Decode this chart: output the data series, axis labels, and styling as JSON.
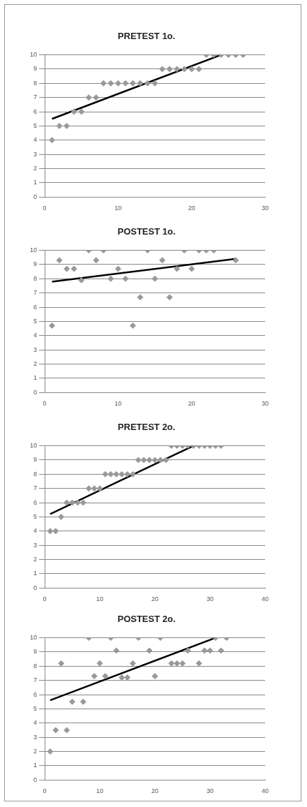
{
  "chart_data": [
    {
      "type": "scatter",
      "title": "PRETEST 1o.",
      "xlim": [
        0,
        30
      ],
      "xticks": [
        0,
        10,
        20,
        30
      ],
      "ylim": [
        0,
        10
      ],
      "yticks": [
        0,
        1,
        2,
        3,
        4,
        5,
        6,
        7,
        8,
        9,
        10
      ],
      "grid": "y",
      "legend": false,
      "marker": "diamond",
      "series": [
        {
          "color": "#999999",
          "x": [
            1,
            2,
            3,
            4,
            5,
            6,
            7,
            8,
            9,
            10,
            11,
            12,
            13,
            14,
            15,
            16,
            17,
            18,
            19,
            20,
            21,
            22,
            23,
            24,
            25,
            26,
            27
          ],
          "values": [
            4,
            5,
            5,
            6,
            6,
            7,
            7,
            8,
            8,
            8,
            8,
            8,
            8,
            8,
            8,
            9,
            9,
            9,
            9,
            9,
            9,
            10,
            10,
            10,
            10,
            10,
            10
          ]
        },
        {
          "type": "line",
          "marker": "none",
          "color": "#000000",
          "x": [
            1,
            24
          ],
          "values": [
            5.5,
            10
          ]
        }
      ]
    },
    {
      "type": "scatter",
      "title": "POSTEST 1o.",
      "xlim": [
        0,
        30
      ],
      "xticks": [
        0,
        10,
        20,
        30
      ],
      "ylim": [
        0,
        10
      ],
      "yticks": [
        0,
        1,
        2,
        3,
        4,
        5,
        6,
        7,
        8,
        9,
        10
      ],
      "grid": "y",
      "legend": false,
      "marker": "diamond",
      "series": [
        {
          "color": "#999999",
          "x": [
            1,
            2,
            3,
            4,
            5,
            6,
            7,
            8,
            9,
            10,
            11,
            12,
            13,
            14,
            15,
            16,
            17,
            18,
            19,
            20,
            21,
            22,
            23,
            26
          ],
          "values": [
            4.7,
            9.3,
            8.7,
            8.7,
            7.9,
            10,
            9.3,
            10,
            8,
            8.7,
            8,
            4.7,
            6.7,
            10,
            8,
            9.3,
            6.7,
            8.7,
            10,
            8.7,
            10,
            10,
            10,
            9.3
          ]
        },
        {
          "type": "line",
          "marker": "none",
          "color": "#000000",
          "x": [
            1,
            26
          ],
          "values": [
            7.8,
            9.4
          ]
        }
      ]
    },
    {
      "type": "scatter",
      "title": "PRETEST 2o.",
      "xlim": [
        0,
        40
      ],
      "xticks": [
        0,
        10,
        20,
        30,
        40
      ],
      "ylim": [
        0,
        10
      ],
      "yticks": [
        0,
        1,
        2,
        3,
        4,
        5,
        6,
        7,
        8,
        9,
        10
      ],
      "grid": "y",
      "legend": false,
      "marker": "diamond",
      "series": [
        {
          "color": "#999999",
          "x": [
            1,
            2,
            3,
            4,
            5,
            6,
            7,
            8,
            9,
            10,
            11,
            12,
            13,
            14,
            15,
            16,
            17,
            18,
            19,
            20,
            21,
            22,
            23,
            24,
            25,
            26,
            27,
            28,
            29,
            30,
            31,
            32
          ],
          "values": [
            4,
            4,
            5,
            6,
            6,
            6,
            6,
            7,
            7,
            7,
            8,
            8,
            8,
            8,
            8,
            8,
            9,
            9,
            9,
            9,
            9,
            9,
            10,
            10,
            10,
            10,
            10,
            10,
            10,
            10,
            10,
            10
          ]
        },
        {
          "type": "line",
          "marker": "none",
          "color": "#000000",
          "x": [
            1,
            27
          ],
          "values": [
            5.2,
            10
          ]
        }
      ]
    },
    {
      "type": "scatter",
      "title": "POSTEST 2o.",
      "xlim": [
        0,
        40
      ],
      "xticks": [
        0,
        10,
        20,
        30,
        40
      ],
      "ylim": [
        0,
        10
      ],
      "yticks": [
        0,
        1,
        2,
        3,
        4,
        5,
        6,
        7,
        8,
        9,
        10
      ],
      "grid": "y",
      "legend": false,
      "marker": "diamond",
      "series": [
        {
          "color": "#999999",
          "x": [
            1,
            2,
            3,
            4,
            5,
            7,
            8,
            9,
            10,
            11,
            12,
            13,
            14,
            15,
            16,
            17,
            19,
            20,
            21,
            23,
            24,
            25,
            26,
            28,
            29,
            30,
            31,
            32,
            33
          ],
          "values": [
            2,
            3.5,
            8.2,
            3.5,
            5.5,
            5.5,
            10,
            7.3,
            8.2,
            7.3,
            10,
            9.1,
            7.2,
            7.2,
            8.2,
            10,
            9.1,
            7.3,
            10,
            8.2,
            8.2,
            8.2,
            9.1,
            8.2,
            9.1,
            9.1,
            10,
            9.1,
            10
          ]
        },
        {
          "type": "line",
          "marker": "none",
          "color": "#000000",
          "x": [
            1,
            31
          ],
          "values": [
            5.6,
            10
          ]
        }
      ]
    }
  ]
}
